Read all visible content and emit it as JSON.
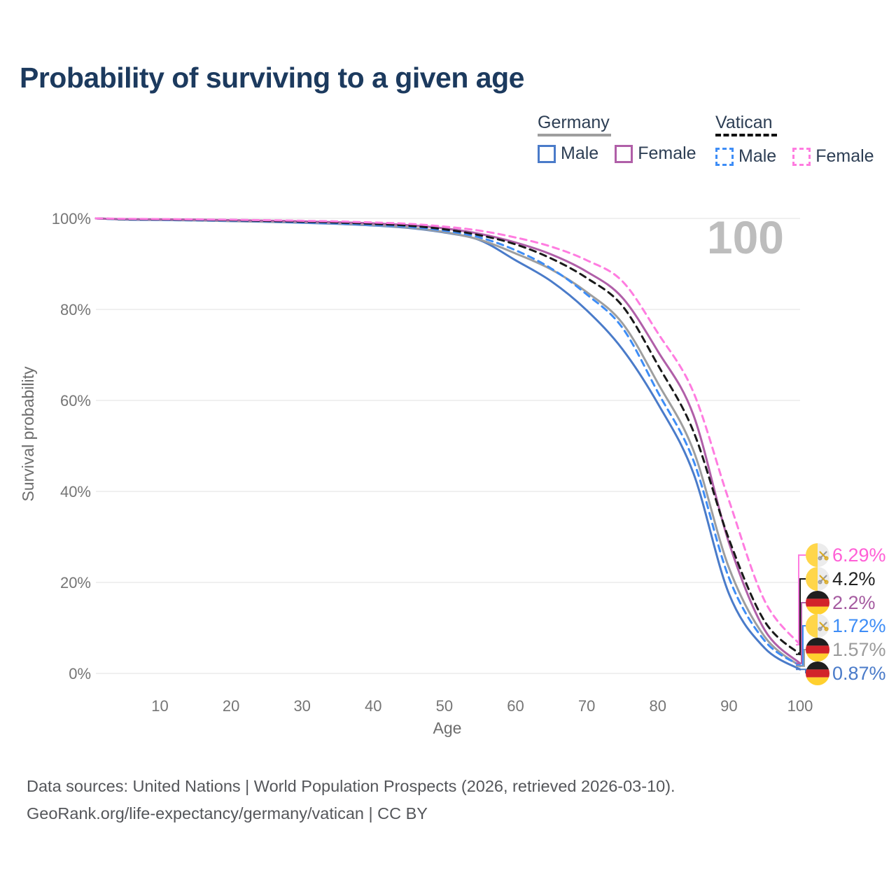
{
  "header": {
    "title": "Probability of surviving to a given age"
  },
  "legend": {
    "germany": {
      "label": "Germany",
      "male_label": "Male",
      "female_label": "Female"
    },
    "vatican": {
      "label": "Vatican",
      "male_label": "Male",
      "female_label": "Female"
    }
  },
  "chart_data": {
    "type": "line",
    "title": "Probability of surviving to a given age",
    "xlabel": "Age",
    "ylabel": "Survival probability",
    "watermark": "100",
    "xlim": [
      1,
      100
    ],
    "ylim": [
      0,
      100
    ],
    "grid": "horizontal",
    "legend_position": "top-right",
    "x_ticks": [
      10,
      20,
      30,
      40,
      50,
      60,
      70,
      80,
      90,
      100
    ],
    "y_tick_values": [
      0,
      20,
      40,
      60,
      80,
      100
    ],
    "y_tick_labels": [
      "0%",
      "20%",
      "40%",
      "60%",
      "80%",
      "100%"
    ],
    "ages": [
      1,
      5,
      10,
      15,
      20,
      25,
      30,
      35,
      40,
      45,
      50,
      55,
      60,
      65,
      70,
      75,
      80,
      85,
      90,
      95,
      100
    ],
    "series": [
      {
        "key": "germany_male",
        "name": "Germany Male",
        "color": "#4a7bc9",
        "dash": "solid",
        "values": [
          100,
          99.75,
          99.65,
          99.55,
          99.4,
          99.25,
          99.05,
          98.8,
          98.45,
          97.9,
          96.9,
          95.2,
          90.8,
          86.2,
          79.8,
          71.3,
          59.3,
          44.0,
          17.5,
          5.6,
          0.87
        ]
      },
      {
        "key": "germany_total",
        "name": "Germany",
        "color": "#9e9e9e",
        "dash": "solid",
        "values": [
          100,
          99.8,
          99.7,
          99.6,
          99.45,
          99.3,
          99.15,
          98.9,
          98.55,
          98.0,
          97.0,
          95.3,
          92.3,
          88.8,
          83.8,
          77.0,
          63.8,
          49.0,
          23.2,
          8.1,
          1.57
        ]
      },
      {
        "key": "germany_female",
        "name": "Germany Female",
        "color": "#b05fa8",
        "dash": "solid",
        "values": [
          100,
          99.85,
          99.8,
          99.72,
          99.62,
          99.5,
          99.35,
          99.15,
          98.9,
          98.5,
          97.8,
          96.6,
          94.7,
          92.1,
          88.3,
          82.6,
          70.8,
          56.8,
          28.7,
          9.6,
          2.2
        ]
      },
      {
        "key": "vatican_male",
        "name": "Vatican Male",
        "color": "#3e8df6",
        "dash": "dashed",
        "values": [
          100,
          99.8,
          99.72,
          99.62,
          99.5,
          99.35,
          99.15,
          98.92,
          98.6,
          98.15,
          97.3,
          95.8,
          93.0,
          89.0,
          83.3,
          76.0,
          61.8,
          46.8,
          21.0,
          7.2,
          1.72
        ]
      },
      {
        "key": "vatican_total",
        "name": "Vatican",
        "color": "#1a1a1a",
        "dash": "dashed",
        "values": [
          100,
          99.85,
          99.78,
          99.7,
          99.6,
          99.45,
          99.3,
          99.1,
          98.8,
          98.4,
          97.6,
          96.3,
          94.3,
          91.2,
          86.9,
          80.8,
          67.8,
          53.2,
          29.5,
          11.5,
          4.2
        ]
      },
      {
        "key": "vatican_female",
        "name": "Vatican Female",
        "color": "#ff7ce0",
        "dash": "dashed",
        "values": [
          100,
          99.9,
          99.85,
          99.78,
          99.7,
          99.6,
          99.48,
          99.32,
          99.1,
          98.8,
          98.2,
          97.3,
          95.8,
          93.8,
          90.8,
          86.2,
          74.8,
          61.8,
          38.0,
          16.0,
          6.29
        ]
      }
    ],
    "end_labels": [
      {
        "series": "vatican_female",
        "text": "6.29%",
        "color": "#ff5fd6",
        "flag": "vatican"
      },
      {
        "series": "vatican_total",
        "text": "4.2%",
        "color": "#222222",
        "flag": "vatican"
      },
      {
        "series": "germany_female",
        "text": "2.2%",
        "color": "#a55ba0",
        "flag": "germany"
      },
      {
        "series": "vatican_male",
        "text": "1.72%",
        "color": "#3e8df6",
        "flag": "vatican"
      },
      {
        "series": "germany_total",
        "text": "1.57%",
        "color": "#9b9b9b",
        "flag": "germany"
      },
      {
        "series": "germany_male",
        "text": "0.87%",
        "color": "#4a7bc9",
        "flag": "germany"
      }
    ],
    "flag_colors": {
      "germany_black": "#1f1f1f",
      "germany_red": "#d2232a",
      "germany_gold": "#ffd02e",
      "vatican_gold": "#ffd64a",
      "vatican_white": "#ececec",
      "vatican_key_gray": "#9a9a9a",
      "vatican_key_gold": "#d9a922"
    }
  },
  "footer": {
    "line1": "Data sources: United Nations | World Population Prospects (2026, retrieved 2026-03-10).",
    "line2": "GeoRank.org/life-expectancy/germany/vatican | CC BY"
  }
}
